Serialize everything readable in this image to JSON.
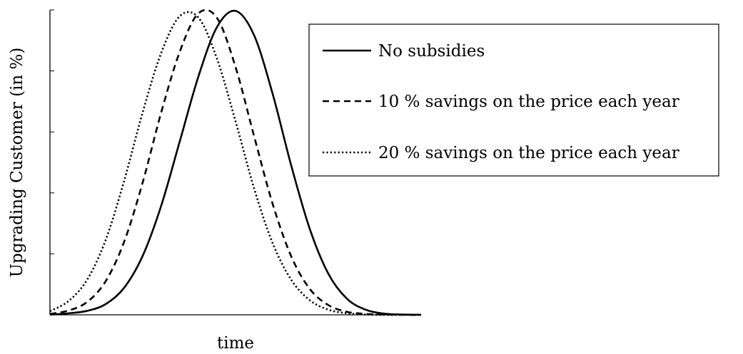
{
  "chart_data": {
    "type": "line",
    "xlabel": "time",
    "ylabel": "Upgrading Customer (in %)",
    "xlim": [
      0,
      100
    ],
    "ylim": [
      0,
      100
    ],
    "grid": false,
    "legend_position": "top-right",
    "x_ticks": [],
    "y_ticks": [
      0,
      20,
      40,
      60,
      80,
      100
    ],
    "series": [
      {
        "name": "No subsidies",
        "style": "solid",
        "x": [
          0,
          5,
          10,
          15,
          20,
          25,
          30,
          35,
          40,
          45,
          50,
          55,
          60,
          65,
          70,
          75,
          80,
          85,
          90,
          95,
          100
        ],
        "y": [
          0.1,
          0.5,
          1.3,
          3.5,
          8.9,
          19.4,
          35.9,
          57.0,
          78.2,
          94.4,
          99.7,
          91.7,
          72.5,
          49.0,
          28.2,
          13.5,
          5.3,
          1.7,
          0.4,
          0.1,
          0.0
        ]
      },
      {
        "name": "10 % savings on the price each year",
        "style": "dashed",
        "x": [
          0,
          5,
          10,
          15,
          20,
          25,
          30,
          35,
          40,
          45,
          50,
          55,
          60,
          65,
          70,
          75,
          80,
          85,
          90,
          95,
          100
        ],
        "y": [
          0.3,
          1.4,
          4.2,
          11.0,
          24.0,
          43.5,
          66.5,
          86.4,
          98.9,
          97.4,
          81.3,
          58.6,
          36.4,
          19.2,
          8.5,
          3.2,
          1.0,
          0.3,
          0.1,
          0.0,
          0.0
        ]
      },
      {
        "name": "20 % savings on the price each year",
        "style": "dotted",
        "x": [
          0,
          5,
          10,
          15,
          20,
          25,
          30,
          35,
          40,
          45,
          50,
          55,
          60,
          65,
          70,
          75,
          80,
          85,
          90,
          95,
          100
        ],
        "y": [
          1.2,
          4.5,
          11.5,
          24.5,
          44.0,
          66.5,
          86.0,
          98.0,
          97.5,
          84.0,
          63.5,
          41.5,
          23.5,
          11.5,
          4.8,
          1.7,
          0.5,
          0.1,
          0.0,
          0.0,
          0.0
        ]
      }
    ]
  }
}
